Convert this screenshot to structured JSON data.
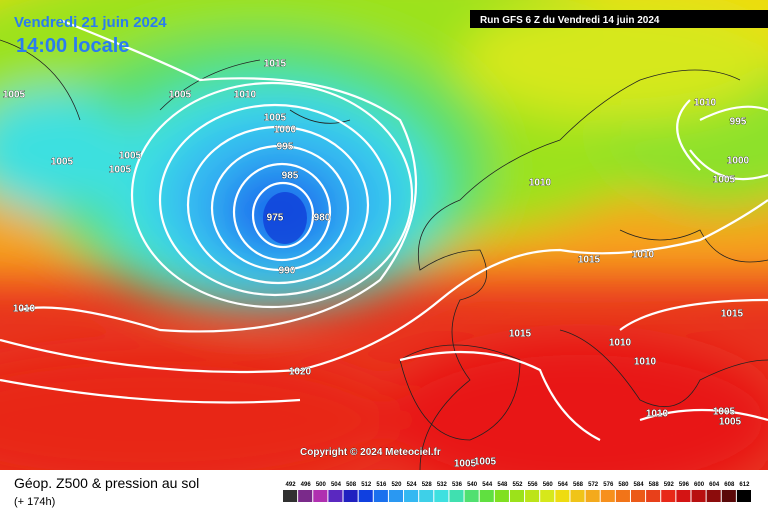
{
  "header": {
    "date": "Vendredi 21 juin 2024",
    "time": "14:00 locale",
    "run": "Run GFS 6 Z du Vendredi 14 juin 2024"
  },
  "copyright": "Copyright © 2024 Meteociel.fr",
  "footer": {
    "title": "Géop. Z500 & pression au sol",
    "lead": "(+ 174h)"
  },
  "legend": {
    "labels": [
      492,
      496,
      500,
      504,
      508,
      512,
      516,
      520,
      524,
      528,
      532,
      536,
      540,
      544,
      548,
      552,
      556,
      560,
      564,
      568,
      572,
      576,
      580,
      584,
      588,
      592,
      596,
      600,
      604,
      608,
      612
    ]
  },
  "isobars": [
    1015,
    1005,
    1005,
    1010,
    1005,
    1000,
    995,
    1005,
    1005,
    1005,
    985,
    975,
    980,
    990,
    1010,
    1020,
    1010,
    995,
    1000,
    1005,
    1010,
    1015,
    1010,
    1015,
    1015,
    1010,
    1010,
    1010,
    1005,
    1005,
    1005,
    1005
  ]
}
